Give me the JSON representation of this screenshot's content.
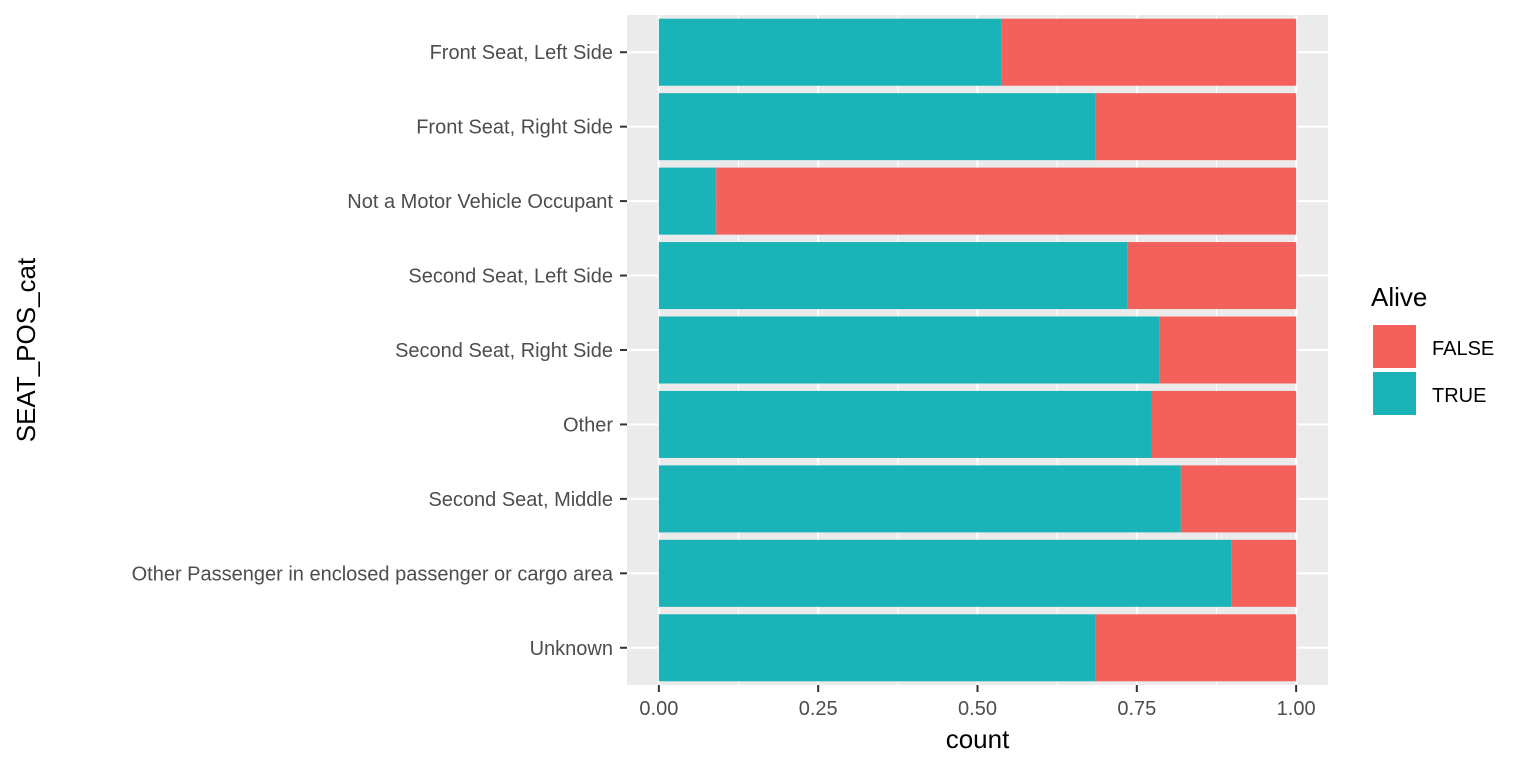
{
  "chart_data": {
    "type": "bar",
    "orientation": "horizontal",
    "stacked": "fill",
    "categories": [
      "Front Seat, Left Side",
      "Front Seat, Right Side",
      "Not a Motor Vehicle Occupant",
      "Second Seat, Left Side",
      "Second Seat, Right Side",
      "Other",
      "Second Seat, Middle",
      "Other Passenger in enclosed passenger or cargo area",
      "Unknown"
    ],
    "series": [
      {
        "name": "TRUE",
        "color": "#19b3b8",
        "values": [
          0.538,
          0.685,
          0.09,
          0.735,
          0.786,
          0.773,
          0.819,
          0.898,
          0.685
        ]
      },
      {
        "name": "FALSE",
        "color": "#f4605c",
        "values": [
          0.462,
          0.315,
          0.91,
          0.265,
          0.214,
          0.227,
          0.181,
          0.102,
          0.315
        ]
      }
    ],
    "xlabel": "count",
    "ylabel": "SEAT_POS_cat",
    "xlim": [
      -0.05,
      1.05
    ],
    "xticks": [
      "0.00",
      "0.25",
      "0.50",
      "0.75",
      "1.00"
    ],
    "xtick_values": [
      0,
      0.25,
      0.5,
      0.75,
      1.0
    ],
    "grid": true,
    "panel_background": "#ebebeb",
    "legend": {
      "title": "Alive",
      "position": "right",
      "entries": [
        {
          "label": "FALSE",
          "color": "#f4605c"
        },
        {
          "label": "TRUE",
          "color": "#19b3b8"
        }
      ]
    }
  }
}
